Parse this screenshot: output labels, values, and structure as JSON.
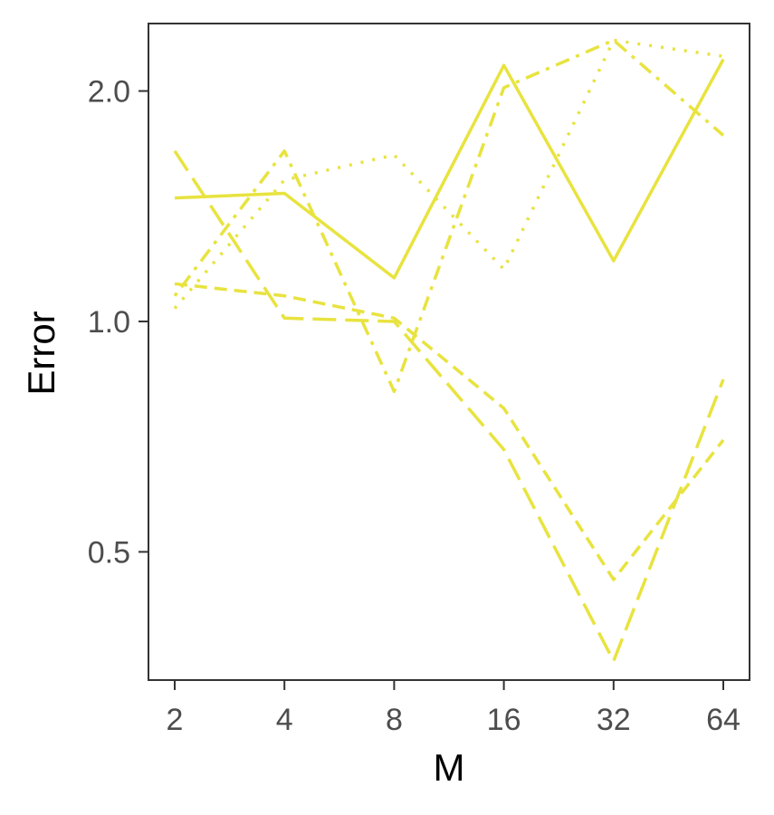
{
  "chart_data": {
    "type": "line",
    "title": "",
    "xlabel": "M",
    "ylabel": "Error",
    "x_scale": "log2",
    "y_scale": "log",
    "categories": [
      "2",
      "4",
      "8",
      "16",
      "32",
      "64"
    ],
    "x": [
      2,
      4,
      8,
      16,
      32,
      64
    ],
    "y_ticks": [
      0.5,
      1.0,
      2.0
    ],
    "y_tick_labels": [
      "0.5",
      "1.0",
      "2.0"
    ],
    "ylim": [
      0.34,
      2.45
    ],
    "grid": false,
    "line_color": "#e8e33f",
    "series": [
      {
        "style": "solid",
        "values": [
          1.45,
          1.47,
          1.14,
          2.16,
          1.2,
          2.2
        ]
      },
      {
        "style": "dotted",
        "values": [
          1.04,
          1.53,
          1.65,
          1.17,
          2.33,
          2.22
        ]
      },
      {
        "style": "dashdot",
        "values": [
          1.08,
          1.67,
          0.81,
          2.02,
          2.33,
          1.75
        ]
      },
      {
        "style": "dashed",
        "values": [
          1.12,
          1.08,
          1.01,
          0.77,
          0.46,
          0.7
        ]
      },
      {
        "style": "longdash",
        "values": [
          1.67,
          1.01,
          1.0,
          0.68,
          0.36,
          0.84
        ]
      }
    ]
  }
}
